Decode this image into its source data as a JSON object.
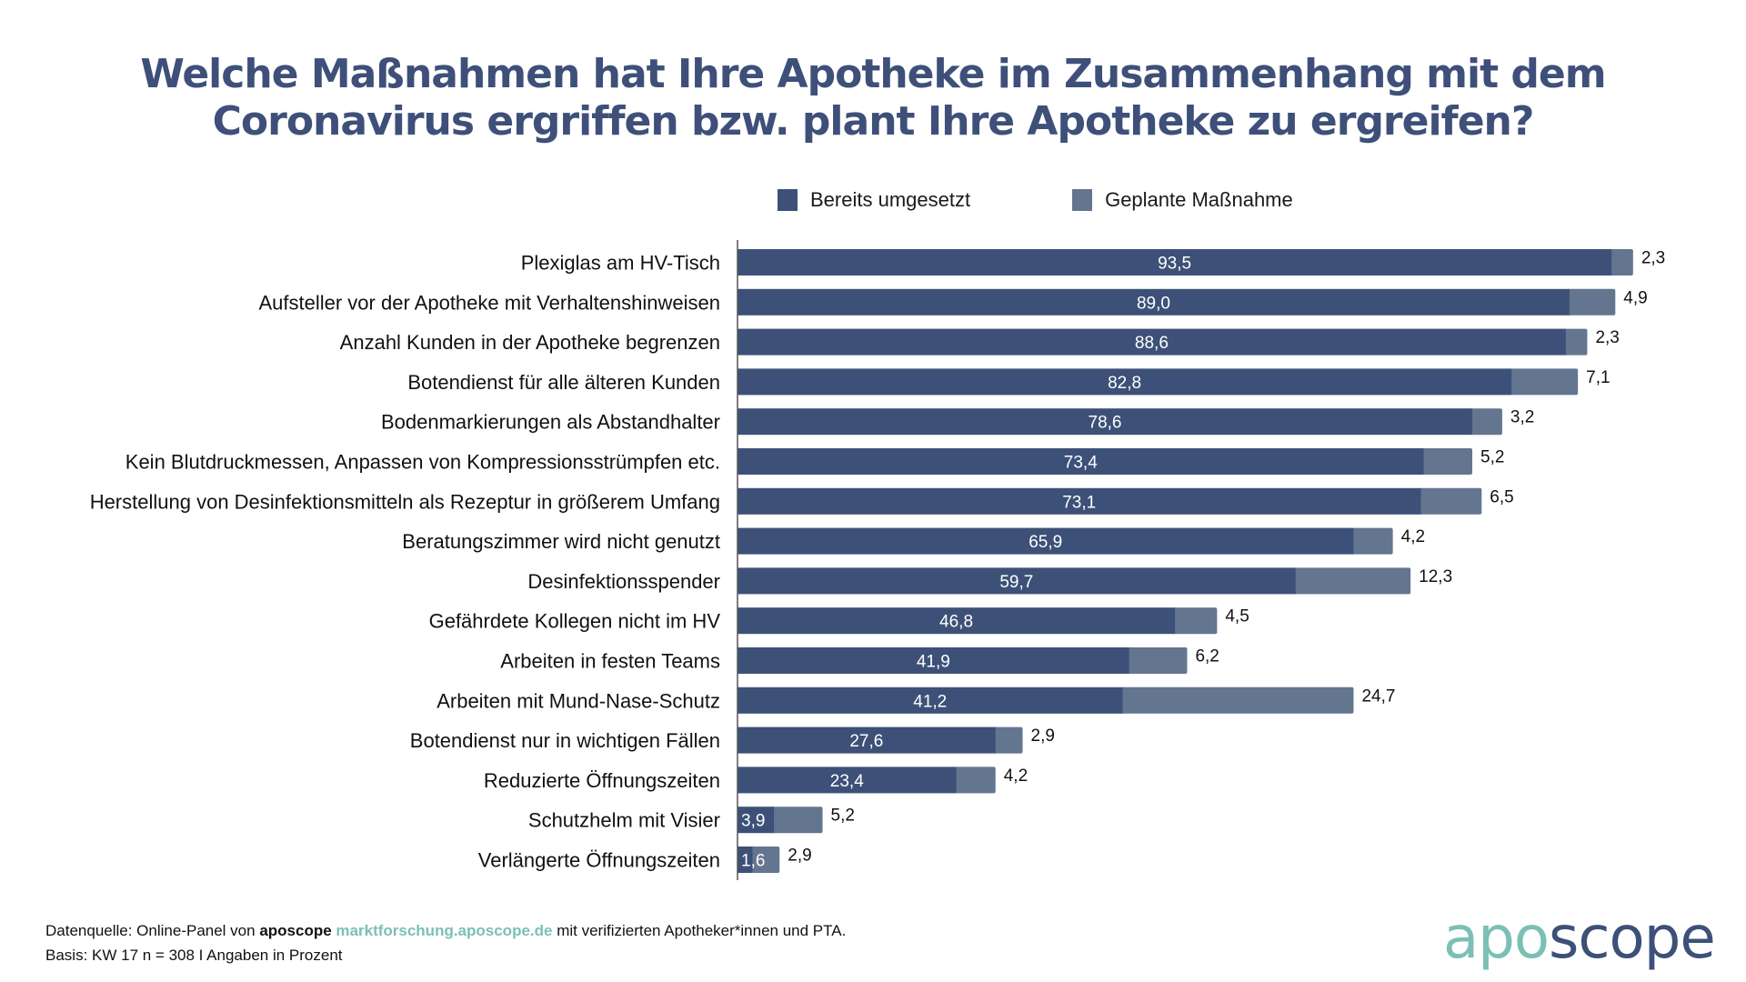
{
  "title_line1": "Welche Maßnahmen hat Ihre Apotheke im Zusammenhang mit dem",
  "title_line2": "Coronavirus ergriffen bzw. plant Ihre Apotheke zu ergreifen?",
  "colors": {
    "implemented": "#3D5178",
    "planned": "#647590",
    "title": "#3E5079",
    "logo_teal": "#7BBFB5",
    "logo_navy": "#3D5078"
  },
  "chart_data": {
    "type": "bar",
    "orientation": "horizontal",
    "stacked": true,
    "title": "Welche Maßnahmen hat Ihre Apotheke im Zusammenhang mit dem Coronavirus ergriffen bzw. plant Ihre Apotheke zu ergreifen?",
    "xlabel": "",
    "ylabel": "",
    "xlim": [
      0,
      100
    ],
    "grid": false,
    "legend_position": "top",
    "decimal_separator": ",",
    "categories": [
      "Plexiglas am HV-Tisch",
      "Aufsteller vor der Apotheke mit Verhaltenshinweisen",
      "Anzahl Kunden in der Apotheke begrenzen",
      "Botendienst für alle älteren Kunden",
      "Bodenmarkierungen als Abstandhalter",
      "Kein Blutdruckmessen, Anpassen von Kompressionsstrümpfen etc.",
      "Herstellung von Desinfektionsmitteln als Rezeptur in größerem Umfang",
      "Beratungszimmer wird nicht genutzt",
      "Desinfektionsspender",
      "Gefährdete Kollegen nicht im HV",
      "Arbeiten in festen Teams",
      "Arbeiten mit Mund-Nase-Schutz",
      "Botendienst nur in wichtigen Fällen",
      "Reduzierte Öffnungszeiten",
      "Schutzhelm mit Visier",
      "Verlängerte Öffnungszeiten"
    ],
    "series": [
      {
        "name": "Bereits umgesetzt",
        "values": [
          93.5,
          89.0,
          88.6,
          82.8,
          78.6,
          73.4,
          73.1,
          65.9,
          59.7,
          46.8,
          41.9,
          41.2,
          27.6,
          23.4,
          3.9,
          1.6
        ]
      },
      {
        "name": "Geplante Maßnahme",
        "values": [
          2.3,
          4.9,
          2.3,
          7.1,
          3.2,
          5.2,
          6.5,
          4.2,
          12.3,
          4.5,
          6.2,
          24.7,
          2.9,
          4.2,
          5.2,
          2.9
        ]
      }
    ]
  },
  "legend": [
    {
      "label": "Bereits umgesetzt"
    },
    {
      "label": "Geplante Maßnahme"
    }
  ],
  "footer": {
    "source_prefix": "Datenquelle: Online-Panel von ",
    "source_brand": "aposcope",
    "source_link": "marktforschung.aposcope.de",
    "source_suffix": " mit verifizierten Apotheker*innen und PTA.",
    "basis": "Basis: KW 17 n = 308 I Angaben in Prozent"
  },
  "logo": {
    "part1": "apo",
    "part2": "scope"
  }
}
